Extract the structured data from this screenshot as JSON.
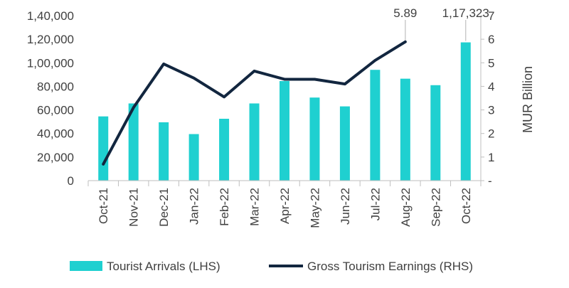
{
  "chart_data": {
    "type": "bar+line",
    "categories": [
      "Oct-21",
      "Nov-21",
      "Dec-21",
      "Jan-22",
      "Feb-22",
      "Mar-22",
      "Apr-22",
      "May-22",
      "Jun-22",
      "Jul-22",
      "Aug-22",
      "Sep-22",
      "Oct-22"
    ],
    "series": [
      {
        "name": "Tourist Arrivals (LHS)",
        "type": "bar",
        "axis": "left",
        "color": "#1fd0d0",
        "values": [
          54500,
          65500,
          49500,
          39500,
          52500,
          65500,
          84500,
          70500,
          63000,
          94000,
          86500,
          81000,
          117323
        ]
      },
      {
        "name": "Gross Tourism Earnings (RHS)",
        "type": "line",
        "axis": "right",
        "color": "#12263f",
        "values": [
          0.7,
          3.1,
          4.95,
          4.35,
          3.55,
          4.65,
          4.3,
          4.3,
          4.1,
          5.1,
          5.89,
          null,
          null
        ]
      }
    ],
    "left_axis": {
      "min": 0,
      "max": 140000,
      "step": 20000,
      "tick_labels": [
        "0",
        "20,000",
        "40,000",
        "60,000",
        "80,000",
        "1,00,000",
        "1,20,000",
        "1,40,000"
      ]
    },
    "right_axis": {
      "min": 0,
      "max": 7,
      "step": 1,
      "title": "MUR Billion",
      "tick_labels": [
        "-",
        "1",
        "2",
        "3",
        "4",
        "5",
        "6",
        "7"
      ]
    },
    "annotations": [
      {
        "text": "5.89",
        "series": "Gross Tourism Earnings (RHS)",
        "category": "Aug-22"
      },
      {
        "text": "1,17,323",
        "series": "Tourist Arrivals (LHS)",
        "category": "Oct-22"
      }
    ],
    "legend": {
      "placement": "bottom"
    },
    "grid": false
  }
}
